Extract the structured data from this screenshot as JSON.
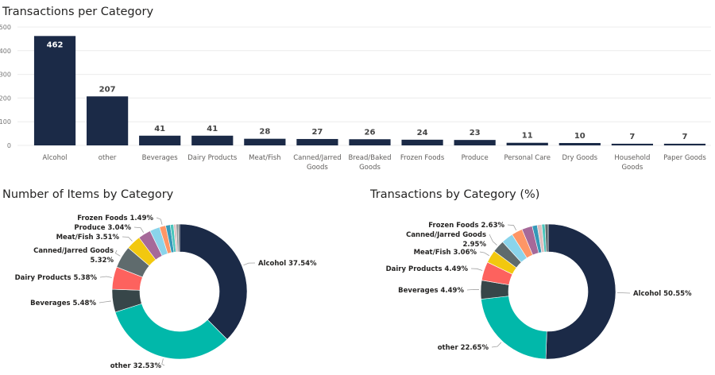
{
  "chart_data": [
    {
      "type": "bar",
      "title": "Transactions per Category",
      "xlabel": "",
      "ylabel": "",
      "ylim": [
        0,
        500
      ],
      "yticks": [
        0,
        100,
        200,
        300,
        400,
        500
      ],
      "grid": true,
      "bar_color": "#1B2A47",
      "categories": [
        "Alcohol",
        "other",
        "Beverages",
        "Dairy Products",
        "Meat/Fish",
        "Canned/Jarred Goods",
        "Bread/Baked Goods",
        "Frozen Foods",
        "Produce",
        "Personal Care",
        "Dry Goods",
        "Household Goods",
        "Paper Goods"
      ],
      "category_lines": [
        [
          "Alcohol"
        ],
        [
          "other"
        ],
        [
          "Beverages"
        ],
        [
          "Dairy Products"
        ],
        [
          "Meat/Fish"
        ],
        [
          "Canned/Jarred",
          "Goods"
        ],
        [
          "Bread/Baked",
          "Goods"
        ],
        [
          "Frozen Foods"
        ],
        [
          "Produce"
        ],
        [
          "Personal Care"
        ],
        [
          "Dry Goods"
        ],
        [
          "Household",
          "Goods"
        ],
        [
          "Paper Goods"
        ]
      ],
      "values": [
        462,
        207,
        41,
        41,
        28,
        27,
        26,
        24,
        23,
        11,
        10,
        7,
        7
      ]
    },
    {
      "type": "pie",
      "donut": true,
      "title": "Number of Items by Category",
      "slices": [
        {
          "label": "Alcohol",
          "value": 37.54,
          "color": "#1B2A47",
          "shown_label": [
            "Alcohol 37.54%"
          ]
        },
        {
          "label": "other",
          "value": 32.53,
          "color": "#01B8AA",
          "shown_label": [
            "other 32.53%"
          ]
        },
        {
          "label": "Beverages",
          "value": 5.48,
          "color": "#374649",
          "shown_label": [
            "Beverages 5.48%"
          ]
        },
        {
          "label": "Dairy Products",
          "value": 5.38,
          "color": "#FD625E",
          "shown_label": [
            "Dairy Products 5.38%"
          ]
        },
        {
          "label": "Canned/Jarred Goods",
          "value": 5.32,
          "color": "#5F6B6D",
          "shown_label": [
            "Canned/Jarred Goods",
            "5.32%"
          ]
        },
        {
          "label": "Meat/Fish",
          "value": 3.51,
          "color": "#F2C80F",
          "shown_label": [
            "Meat/Fish 3.51%"
          ]
        },
        {
          "label": "Produce",
          "value": 3.04,
          "color": "#A66999",
          "shown_label": [
            "Produce 3.04%"
          ]
        },
        {
          "label": "Bread/Baked Goods",
          "value": 2.4,
          "color": "#8AD4EB",
          "shown_label": []
        },
        {
          "label": "Frozen Foods",
          "value": 1.49,
          "color": "#FE9666",
          "shown_label": [
            "Frozen Foods 1.49%"
          ]
        },
        {
          "label": "Personal Care",
          "value": 1.1,
          "color": "#3599B8",
          "shown_label": []
        },
        {
          "label": "Dry Goods",
          "value": 0.8,
          "color": "#4AC5BB",
          "shown_label": []
        },
        {
          "label": "Household Goods",
          "value": 0.6,
          "color": "#DFBFBF",
          "shown_label": []
        },
        {
          "label": "Paper Goods",
          "value": 0.5,
          "color": "#8C9597",
          "shown_label": []
        },
        {
          "label": "(unlabeled)",
          "value": 0.31,
          "color": "#3B4648",
          "shown_label": []
        }
      ]
    },
    {
      "type": "pie",
      "donut": true,
      "title": "Transactions by Category (%)",
      "slices": [
        {
          "label": "Alcohol",
          "value": 50.55,
          "color": "#1B2A47",
          "shown_label": [
            "Alcohol 50.55%"
          ]
        },
        {
          "label": "other",
          "value": 22.65,
          "color": "#01B8AA",
          "shown_label": [
            "other 22.65%"
          ]
        },
        {
          "label": "Beverages",
          "value": 4.49,
          "color": "#374649",
          "shown_label": [
            "Beverages 4.49%"
          ]
        },
        {
          "label": "Dairy Products",
          "value": 4.49,
          "color": "#FD625E",
          "shown_label": [
            "Dairy Products 4.49%"
          ]
        },
        {
          "label": "Meat/Fish",
          "value": 3.06,
          "color": "#F2C80F",
          "shown_label": [
            "Meat/Fish 3.06%"
          ]
        },
        {
          "label": "Canned/Jarred Goods",
          "value": 2.95,
          "color": "#5F6B6D",
          "shown_label": [
            "Canned/Jarred Goods",
            "2.95%"
          ]
        },
        {
          "label": "Bread/Baked Goods",
          "value": 2.84,
          "color": "#8AD4EB",
          "shown_label": []
        },
        {
          "label": "Frozen Foods",
          "value": 2.63,
          "color": "#FE9666",
          "shown_label": [
            "Frozen Foods 2.63%"
          ]
        },
        {
          "label": "Produce",
          "value": 2.52,
          "color": "#A66999",
          "shown_label": []
        },
        {
          "label": "Personal Care",
          "value": 1.2,
          "color": "#3599B8",
          "shown_label": []
        },
        {
          "label": "Dry Goods",
          "value": 1.09,
          "color": "#DFBFBF",
          "shown_label": []
        },
        {
          "label": "Household Goods",
          "value": 0.77,
          "color": "#4AC5BB",
          "shown_label": []
        },
        {
          "label": "Paper Goods",
          "value": 0.76,
          "color": "#5F6B6D",
          "shown_label": []
        }
      ]
    }
  ]
}
